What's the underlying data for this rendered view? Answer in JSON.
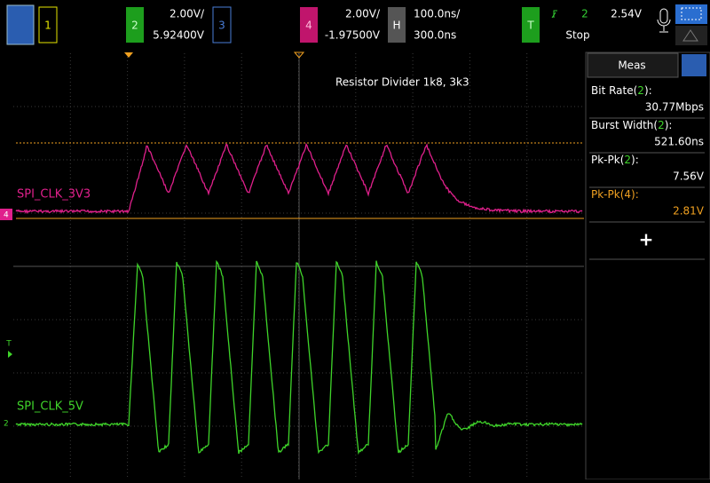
{
  "topbar": {
    "ch1": {
      "number": "1"
    },
    "ch2": {
      "number": "2",
      "scale": "2.00V/",
      "offset": "5.92400V"
    },
    "ch3": {
      "number": "3"
    },
    "ch4": {
      "number": "4",
      "scale": "2.00V/",
      "offset": "-1.97500V"
    },
    "horizontal": {
      "label": "H",
      "scale": "100.0ns/",
      "position": "300.0ns"
    },
    "trigger": {
      "label": "T",
      "source": "2",
      "level": "2.54V",
      "state": "Stop"
    }
  },
  "screen": {
    "annotation": "Resistor Divider 1k8, 3k3",
    "trace_labels": [
      "SPI_CLK_3V3",
      "SPI_CLK_5V"
    ],
    "markers": {
      "trigger": "T",
      "ch4": "4",
      "ch2": "2"
    }
  },
  "panel": {
    "title": "Meas",
    "measurements": [
      {
        "label": "Bit Rate(",
        "channel": "2",
        "suffix": "):",
        "value": "30.77Mbps"
      },
      {
        "label": "Burst Width(",
        "channel": "2",
        "suffix": "):",
        "value": "521.60ns"
      },
      {
        "label": "Pk-Pk(",
        "channel": "2",
        "suffix": "):",
        "value": "7.56V"
      },
      {
        "label": "Pk-Pk(",
        "channel": "4",
        "suffix": "):",
        "value": "2.81V"
      }
    ],
    "add_button": "+"
  }
}
